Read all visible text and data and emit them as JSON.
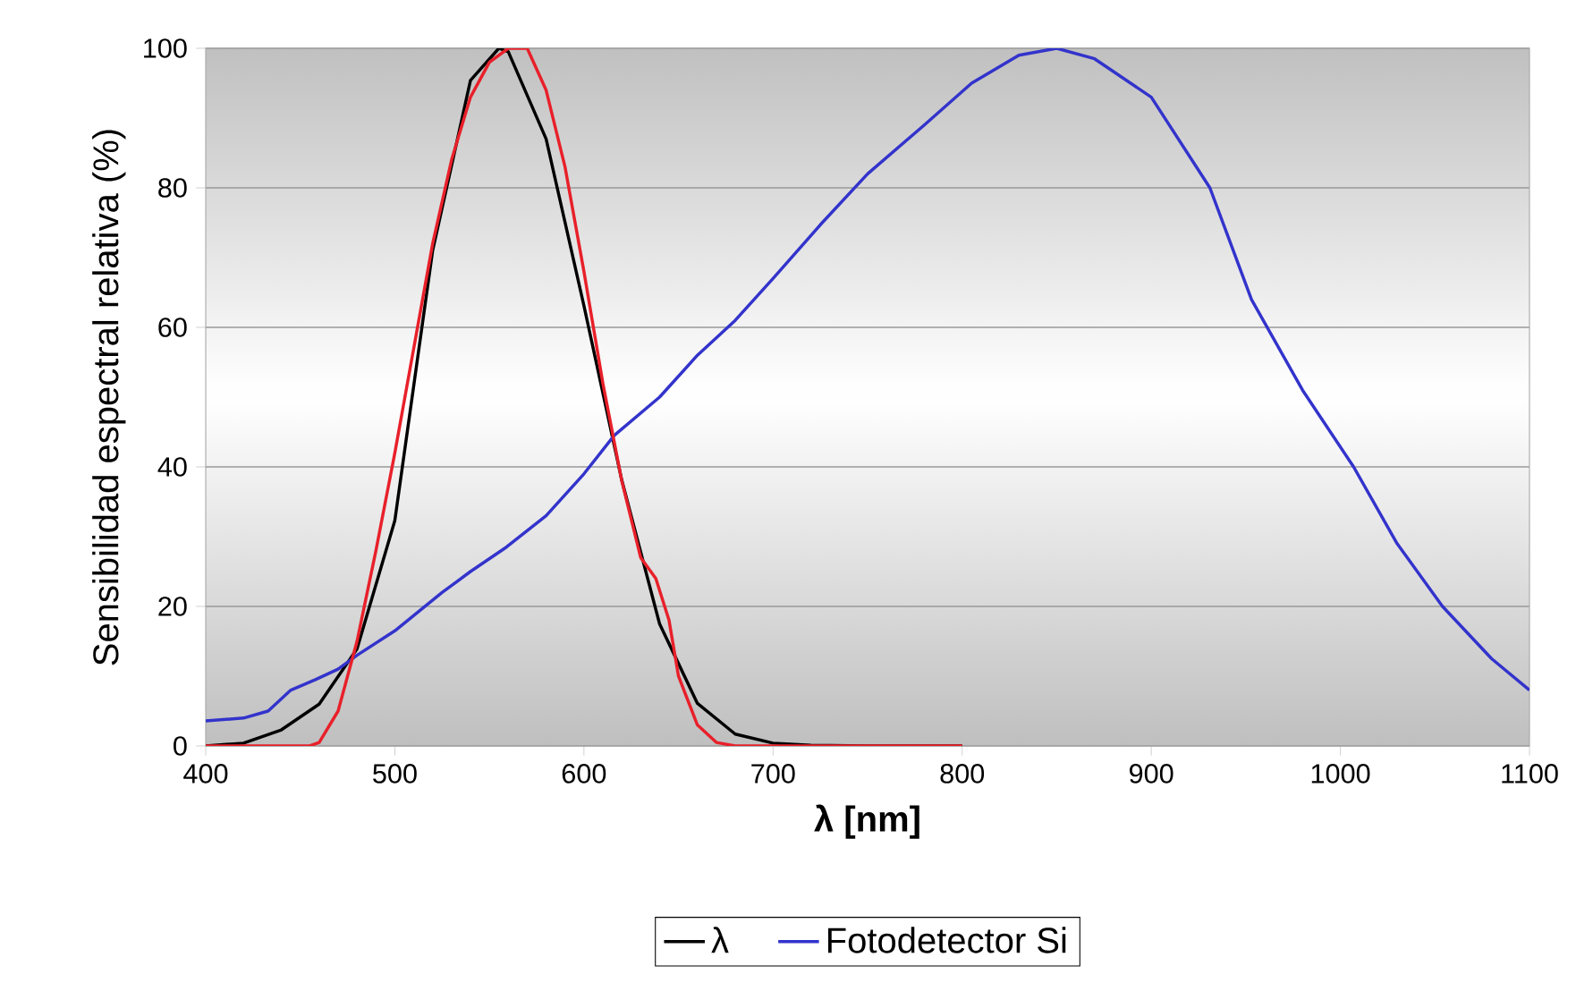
{
  "chart_data": {
    "type": "line",
    "xlabel": "λ [nm]",
    "ylabel": "Sensibilidad espectral relativa (%)",
    "xlim": [
      400,
      1100
    ],
    "xticks": [
      400,
      500,
      600,
      700,
      800,
      900,
      1000,
      1100
    ],
    "ylim": [
      0,
      100
    ],
    "yticks": [
      0,
      20,
      40,
      60,
      80,
      100
    ],
    "grid": "y",
    "legend": "bottom",
    "line_style": "solid",
    "marker": "none",
    "series": [
      {
        "name": "λ",
        "color": "#000000",
        "x": [
          400,
          420,
          440,
          460,
          480,
          500,
          520,
          540,
          555,
          560,
          580,
          600,
          620,
          640,
          660,
          680,
          700,
          720,
          750,
          800
        ],
        "values": [
          0,
          0.4,
          2.3,
          6,
          13.9,
          32.3,
          71,
          95.4,
          100,
          99.5,
          87,
          63.1,
          38.1,
          17.5,
          6.1,
          1.7,
          0.4,
          0.1,
          0,
          0
        ]
      },
      {
        "name": "Fotodetector Si",
        "color": "#3333cc",
        "x": [
          400,
          420,
          433,
          445,
          458,
          470,
          480,
          500,
          525,
          540,
          559,
          580,
          600,
          616,
          640,
          660,
          680,
          700,
          726,
          750,
          780,
          805,
          830,
          850,
          870,
          900,
          931,
          953,
          980,
          1007,
          1030,
          1054,
          1080,
          1100
        ],
        "values": [
          3.6,
          4,
          5,
          8,
          9.5,
          11,
          13,
          16.5,
          22,
          25,
          28.5,
          33,
          39,
          44.5,
          50,
          56,
          61,
          67,
          75,
          82,
          89,
          95,
          99,
          100,
          98.5,
          93,
          80,
          64,
          51,
          40,
          29,
          20,
          12.5,
          8
        ]
      },
      {
        "color": "#e8202a",
        "x": [
          400,
          455,
          460,
          470,
          480,
          490,
          500,
          510,
          520,
          530,
          540,
          550,
          560,
          570,
          580,
          590,
          600,
          610,
          620,
          630,
          638,
          645,
          650,
          660,
          670,
          680,
          800
        ],
        "values": [
          0,
          0,
          0.5,
          5,
          15,
          28,
          42,
          57,
          72,
          84,
          93,
          98,
          100,
          100,
          94,
          83,
          68,
          52,
          38,
          27,
          24,
          18,
          10,
          3,
          0.5,
          0,
          0
        ]
      }
    ]
  }
}
